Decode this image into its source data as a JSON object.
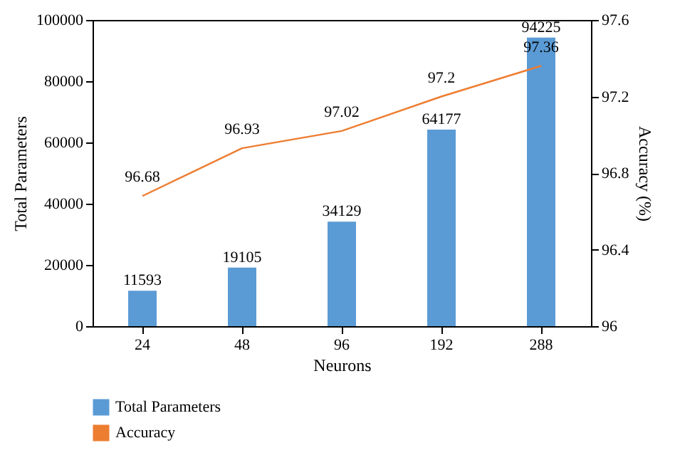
{
  "chart_data": {
    "type": "bar",
    "xlabel": "Neurons",
    "ylabel": "Total Parameters",
    "y2label": "Accuracy (%)",
    "categories": [
      "24",
      "48",
      "96",
      "192",
      "288"
    ],
    "series": [
      {
        "name": "Total Parameters",
        "color": "#5b9bd5",
        "values": [
          11593,
          19105,
          34129,
          64177,
          94225
        ]
      },
      {
        "name": "Accuracy",
        "type": "line",
        "axis": "y2",
        "color": "#ed7d31",
        "values": [
          96.68,
          96.93,
          97.02,
          97.2,
          97.36
        ]
      }
    ],
    "ylim": [
      0,
      100000
    ],
    "yticks": [
      0,
      20000,
      40000,
      60000,
      80000,
      100000
    ],
    "y2lim": [
      96,
      97.6
    ],
    "y2ticks": [
      96,
      96.4,
      96.8,
      97.2,
      97.6
    ],
    "data_labels": true,
    "legend": "bottom",
    "grid": false
  }
}
